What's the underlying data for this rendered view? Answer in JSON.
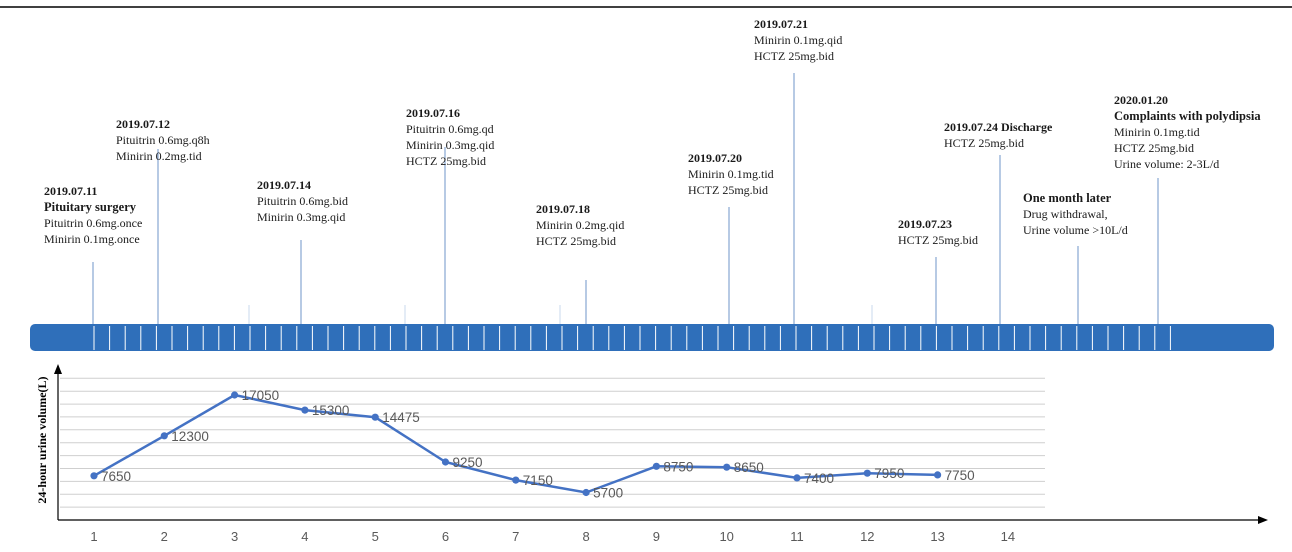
{
  "colors": {
    "band": "#2f6fba",
    "band_line": "#ffffff",
    "series": "#4472c4",
    "grid": "#cfcfcf",
    "event_line": "#6f95c8",
    "axis": "#000000",
    "text": "#1a1a1a",
    "label": "#595959"
  },
  "events": [
    {
      "date": "2019.07.11",
      "title": "Pituitary surgery",
      "lines": [
        "Pituitrin 0.6mg.once",
        "Minirin 0.1mg.once"
      ]
    },
    {
      "date": "2019.07.12",
      "title": "",
      "lines": [
        "Pituitrin 0.6mg.q8h",
        "Minirin 0.2mg.tid"
      ]
    },
    {
      "date": "2019.07.14",
      "title": "",
      "lines": [
        "Pituitrin 0.6mg.bid",
        "Minirin 0.3mg.qid"
      ]
    },
    {
      "date": "2019.07.16",
      "title": "",
      "lines": [
        "Pituitrin 0.6mg.qd",
        "Minirin 0.3mg.qid",
        "HCTZ 25mg.bid"
      ]
    },
    {
      "date": "2019.07.18",
      "title": "",
      "lines": [
        "Minirin 0.2mg.qid",
        "HCTZ 25mg.bid"
      ]
    },
    {
      "date": "2019.07.20",
      "title": "",
      "lines": [
        "Minirin 0.1mg.tid",
        "HCTZ 25mg.bid"
      ]
    },
    {
      "date": "2019.07.21",
      "title": "",
      "lines": [
        "Minirin 0.1mg.qid",
        "HCTZ 25mg.bid"
      ]
    },
    {
      "date": "2019.07.23",
      "title": "",
      "lines": [
        "HCTZ 25mg.bid"
      ]
    },
    {
      "date": "2019.07.24 Discharge",
      "title": "",
      "lines": [
        "HCTZ 25mg.bid"
      ]
    },
    {
      "date": "",
      "title": "One month later",
      "lines": [
        "Drug withdrawal,",
        "Urine volume >10L/d"
      ]
    },
    {
      "date": "2020.01.20",
      "title": "Complaints with polydipsia",
      "lines": [
        "Minirin 0.1mg.tid",
        "HCTZ 25mg.bid",
        "Urine volume: 2-3L/d"
      ]
    }
  ],
  "chart_data": {
    "type": "line",
    "ylabel": "24-hour urine volume(L)",
    "xlabel": "",
    "grid": true,
    "x_ticks": [
      "1",
      "2",
      "3",
      "4",
      "5",
      "6",
      "7",
      "8",
      "9",
      "10",
      "11",
      "12",
      "13",
      "14"
    ],
    "ylim": [
      2500,
      19500
    ],
    "series": [
      {
        "x": [
          1,
          2,
          3,
          4,
          5,
          6,
          7,
          8,
          9,
          10,
          11,
          12,
          13
        ],
        "values": [
          7650,
          12300,
          17050,
          15300,
          14475,
          9250,
          7150,
          5700,
          8750,
          8650,
          7400,
          7950,
          7750
        ]
      }
    ]
  }
}
